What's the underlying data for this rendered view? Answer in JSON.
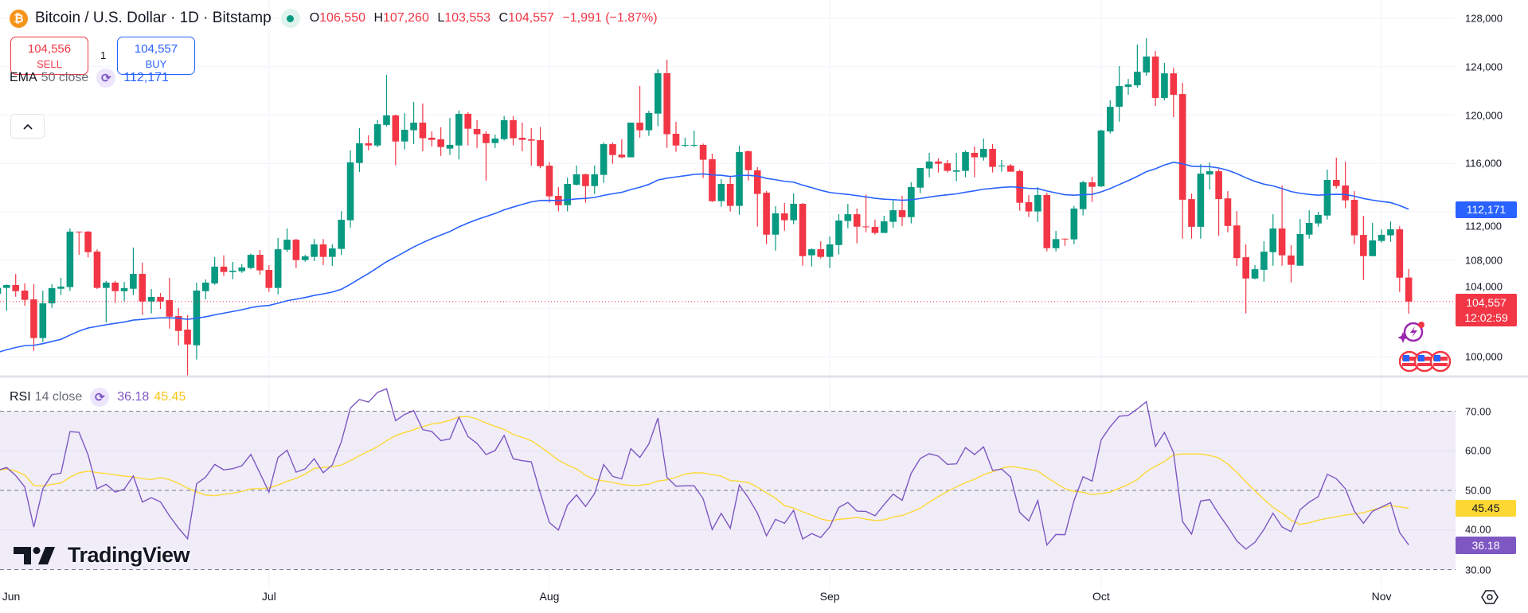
{
  "header": {
    "symbol_icon": "bitcoin-icon",
    "title": "Bitcoin / U.S. Dollar · 1D · Bitstamp",
    "market_status_icon": "market-open-dot",
    "ohlc": {
      "o_label": "O",
      "o": "106,550",
      "h_label": "H",
      "h": "107,260",
      "l_label": "L",
      "l": "103,553",
      "c_label": "C",
      "c": "104,557",
      "change": "−1,991 (−1.87%)"
    }
  },
  "trade": {
    "sell_price": "104,556",
    "sell_label": "SELL",
    "spread": "1",
    "buy_price": "104,557",
    "buy_label": "BUY"
  },
  "indicators": {
    "ema": {
      "name": "EMA",
      "params": "50 close",
      "value": "112,171"
    },
    "rsi": {
      "name": "RSI",
      "params": "14 close",
      "value": "36.18",
      "ma_value": "45.45"
    }
  },
  "price_axis": {
    "ticks": [
      "128,000",
      "124,000",
      "120,000",
      "116,000",
      "112,000",
      "108,000",
      "104,000",
      "100,000"
    ],
    "last_price": "104,557",
    "countdown": "12:02:59",
    "ema_badge": "112,171"
  },
  "rsi_axis": {
    "ticks": [
      "70.00",
      "60.00",
      "50.00",
      "40.00",
      "30.00"
    ],
    "value_badge": "36.18",
    "ma_badge": "45.45"
  },
  "time_axis": {
    "labels": [
      "Jun",
      "Jul",
      "Aug",
      "Sep",
      "Oct",
      "Nov"
    ]
  },
  "watermark": "TradingView",
  "colors": {
    "up": "#089981",
    "down": "#f23645",
    "ema": "#2962ff",
    "rsi": "#7e57c2",
    "rsi_ma": "#fdd835",
    "rsi_band": "#f0edf9",
    "grid": "#f0f3fa"
  },
  "chart_data": {
    "type": "candlestick",
    "series_columns": [
      "date",
      "open",
      "high",
      "low",
      "close"
    ],
    "ylim": [
      98000,
      128500
    ],
    "rsi_ylim": [
      30,
      70
    ],
    "grid": true,
    "candles": [
      [
        "Jun 1",
        105200,
        105900,
        104800,
        105690
      ],
      [
        "Jun 2",
        105690,
        105970,
        103780,
        105930
      ],
      [
        "Jun 3",
        105930,
        106850,
        104960,
        105420
      ],
      [
        "Jun 4",
        105470,
        106060,
        104220,
        104700
      ],
      [
        "Jun 5",
        104740,
        105990,
        100480,
        101540
      ],
      [
        "Jun 6",
        101540,
        105470,
        101190,
        104410
      ],
      [
        "Jun 7",
        104410,
        105990,
        104040,
        105670
      ],
      [
        "Jun 8",
        105620,
        106520,
        105100,
        105800
      ],
      [
        "Jun 9",
        105760,
        110610,
        105430,
        110350
      ],
      [
        "Jun 10",
        110350,
        110350,
        108430,
        110300
      ],
      [
        "Jun 11",
        110350,
        110410,
        108220,
        108650
      ],
      [
        "Jun 12",
        108700,
        108870,
        105600,
        105690
      ],
      [
        "Jun 13",
        105690,
        106280,
        102830,
        106130
      ],
      [
        "Jun 14",
        106130,
        106280,
        104440,
        105420
      ],
      [
        "Jun 15",
        105420,
        106190,
        104590,
        105670
      ],
      [
        "Jun 16",
        105620,
        109030,
        105100,
        106850
      ],
      [
        "Jun 17",
        106850,
        107780,
        103450,
        104570
      ],
      [
        "Jun 18",
        104570,
        105600,
        103580,
        104940
      ],
      [
        "Jun 19",
        104940,
        105270,
        103950,
        104570
      ],
      [
        "Jun 20",
        104680,
        106520,
        102330,
        103310
      ],
      [
        "Jun 21",
        103360,
        104020,
        100940,
        102130
      ],
      [
        "Jun 22",
        102240,
        103430,
        98390,
        101010
      ],
      [
        "Jun 23",
        100940,
        106130,
        99760,
        105470
      ],
      [
        "Jun 24",
        105420,
        106390,
        104740,
        106130
      ],
      [
        "Jun 25",
        106060,
        108260,
        105950,
        107450
      ],
      [
        "Jun 26",
        107450,
        108390,
        106680,
        107010
      ],
      [
        "Jun 27",
        107010,
        107840,
        106410,
        107120
      ],
      [
        "Jun 28",
        107070,
        107670,
        106940,
        107380
      ],
      [
        "Jun 29",
        107340,
        108540,
        107230,
        108430
      ],
      [
        "Jun 30",
        108430,
        108830,
        106790,
        107140
      ],
      [
        "Jul 1",
        107180,
        107580,
        105360,
        105690
      ],
      [
        "Jul 2",
        105690,
        109820,
        105160,
        108890
      ],
      [
        "Jul 3",
        108850,
        110610,
        108650,
        109680
      ],
      [
        "Jul 4",
        109680,
        109760,
        107330,
        107990
      ],
      [
        "Jul 5",
        107990,
        108430,
        107860,
        108300
      ],
      [
        "Jul 6",
        108260,
        109740,
        107910,
        109290
      ],
      [
        "Jul 7",
        109290,
        109740,
        107580,
        108260
      ],
      [
        "Jul 8",
        108260,
        109290,
        107510,
        108960
      ],
      [
        "Jul 9",
        108920,
        112050,
        108410,
        111330
      ],
      [
        "Jul 10",
        111290,
        117070,
        110680,
        116080
      ],
      [
        "Jul 11",
        116030,
        118910,
        115290,
        117660
      ],
      [
        "Jul 12",
        117660,
        118320,
        117080,
        117480
      ],
      [
        "Jul 13",
        117480,
        119570,
        117330,
        119240
      ],
      [
        "Jul 14",
        119180,
        123330,
        119050,
        119970
      ],
      [
        "Jul 15",
        119970,
        120040,
        115840,
        117810
      ],
      [
        "Jul 16",
        117810,
        120160,
        117150,
        118780
      ],
      [
        "Jul 17",
        118740,
        121080,
        117600,
        119370
      ],
      [
        "Jul 18",
        119370,
        120950,
        117000,
        118080
      ],
      [
        "Jul 19",
        118120,
        118650,
        117400,
        117950
      ],
      [
        "Jul 20",
        117990,
        118980,
        116620,
        117350
      ],
      [
        "Jul 21",
        117220,
        119750,
        116690,
        117530
      ],
      [
        "Jul 22",
        117480,
        120370,
        116330,
        120100
      ],
      [
        "Jul 23",
        120100,
        120230,
        117480,
        118870
      ],
      [
        "Jul 24",
        118850,
        119570,
        117260,
        118410
      ],
      [
        "Jul 25",
        118450,
        118650,
        114580,
        117680
      ],
      [
        "Jul 26",
        117680,
        118380,
        117280,
        118050
      ],
      [
        "Jul 27",
        118010,
        119920,
        117900,
        119570
      ],
      [
        "Jul 28",
        119570,
        119900,
        117500,
        118080
      ],
      [
        "Jul 29",
        118120,
        119390,
        117000,
        117950
      ],
      [
        "Jul 30",
        117990,
        118910,
        115800,
        117880
      ],
      [
        "Jul 31",
        117920,
        119000,
        115600,
        115770
      ],
      [
        "Aug 1",
        115810,
        116110,
        112760,
        113270
      ],
      [
        "Aug 2",
        113310,
        114030,
        112030,
        112540
      ],
      [
        "Aug 3",
        112540,
        114820,
        112030,
        114300
      ],
      [
        "Aug 4",
        114230,
        115820,
        114170,
        115090
      ],
      [
        "Aug 5",
        115090,
        115160,
        112740,
        114120
      ],
      [
        "Aug 6",
        114120,
        115820,
        113470,
        115090
      ],
      [
        "Aug 7",
        115050,
        117730,
        114390,
        117590
      ],
      [
        "Aug 8",
        117590,
        117730,
        115970,
        116690
      ],
      [
        "Aug 9",
        116720,
        117990,
        116430,
        116500
      ],
      [
        "Aug 10",
        116500,
        119370,
        116500,
        119370
      ],
      [
        "Aug 11",
        119370,
        122410,
        118140,
        118740
      ],
      [
        "Aug 12",
        118740,
        120360,
        118280,
        120170
      ],
      [
        "Aug 13",
        120120,
        123790,
        119070,
        123460
      ],
      [
        "Aug 14",
        123460,
        124580,
        117290,
        118410
      ],
      [
        "Aug 15",
        118450,
        119440,
        116960,
        117480
      ],
      [
        "Aug 16",
        117480,
        118120,
        117350,
        117530
      ],
      [
        "Aug 17",
        117480,
        118710,
        117350,
        117530
      ],
      [
        "Aug 18",
        117530,
        117640,
        114780,
        116300
      ],
      [
        "Aug 19",
        116340,
        116800,
        112800,
        112870
      ],
      [
        "Aug 20",
        112870,
        114690,
        112410,
        114300
      ],
      [
        "Aug 21",
        114300,
        114960,
        112010,
        112480
      ],
      [
        "Aug 22",
        112480,
        117460,
        111750,
        116940
      ],
      [
        "Aug 23",
        117000,
        117070,
        114580,
        115440
      ],
      [
        "Aug 24",
        115420,
        115690,
        110760,
        113470
      ],
      [
        "Aug 25",
        113570,
        113710,
        109310,
        110100
      ],
      [
        "Aug 26",
        110100,
        112450,
        108780,
        111860
      ],
      [
        "Aug 27",
        111860,
        112720,
        110430,
        111290
      ],
      [
        "Aug 28",
        111290,
        113510,
        110960,
        112650
      ],
      [
        "Aug 29",
        112650,
        112720,
        107530,
        108320
      ],
      [
        "Aug 30",
        108390,
        108960,
        107470,
        108890
      ],
      [
        "Aug 31",
        108890,
        109550,
        108120,
        108260
      ],
      [
        "Sep 1",
        108260,
        109950,
        107330,
        109290
      ],
      [
        "Sep 2",
        109240,
        111790,
        108460,
        111270
      ],
      [
        "Sep 3",
        111230,
        112650,
        110630,
        111790
      ],
      [
        "Sep 4",
        111790,
        112260,
        109380,
        110760
      ],
      [
        "Sep 5",
        110780,
        113420,
        110300,
        110720
      ],
      [
        "Sep 6",
        110740,
        111340,
        110110,
        110240
      ],
      [
        "Sep 7",
        110240,
        111660,
        110240,
        111200
      ],
      [
        "Sep 8",
        111160,
        113050,
        110680,
        112120
      ],
      [
        "Sep 9",
        112120,
        113310,
        110810,
        111550
      ],
      [
        "Sep 10",
        111550,
        114430,
        111030,
        114040
      ],
      [
        "Sep 11",
        113990,
        115620,
        113530,
        115620
      ],
      [
        "Sep 12",
        115580,
        116870,
        114850,
        116150
      ],
      [
        "Sep 13",
        116150,
        116410,
        115250,
        115970
      ],
      [
        "Sep 14",
        116010,
        116280,
        115250,
        115380
      ],
      [
        "Sep 15",
        115310,
        116870,
        114520,
        115420
      ],
      [
        "Sep 16",
        115380,
        117070,
        114850,
        116940
      ],
      [
        "Sep 17",
        116870,
        117400,
        114850,
        116500
      ],
      [
        "Sep 18",
        116500,
        118060,
        116230,
        117200
      ],
      [
        "Sep 19",
        117200,
        117600,
        115250,
        115710
      ],
      [
        "Sep 20",
        115800,
        116280,
        115310,
        115820
      ],
      [
        "Sep 21",
        115820,
        115950,
        115310,
        115310
      ],
      [
        "Sep 22",
        115360,
        115490,
        112080,
        112740
      ],
      [
        "Sep 23",
        112790,
        113380,
        111550,
        112020
      ],
      [
        "Sep 24",
        112020,
        114040,
        111160,
        113380
      ],
      [
        "Sep 25",
        113380,
        113580,
        108720,
        108980
      ],
      [
        "Sep 26",
        108980,
        110410,
        108720,
        109730
      ],
      [
        "Sep 27",
        109770,
        109770,
        109180,
        109710
      ],
      [
        "Sep 28",
        109710,
        112480,
        109310,
        112260
      ],
      [
        "Sep 29",
        112210,
        114560,
        111690,
        114430
      ],
      [
        "Sep 30",
        114430,
        114890,
        112810,
        114060
      ],
      [
        "Oct 1",
        114100,
        118780,
        114040,
        118720
      ],
      [
        "Oct 2",
        118640,
        121210,
        118470,
        120680
      ],
      [
        "Oct 3",
        120680,
        124050,
        119450,
        122400
      ],
      [
        "Oct 4",
        122330,
        122990,
        121670,
        122530
      ],
      [
        "Oct 5",
        122460,
        125830,
        122270,
        123580
      ],
      [
        "Oct 6",
        123520,
        126350,
        123250,
        124840
      ],
      [
        "Oct 7",
        124840,
        125300,
        120750,
        121410
      ],
      [
        "Oct 8",
        121410,
        124310,
        121210,
        123450
      ],
      [
        "Oct 9",
        123450,
        123910,
        119830,
        121670
      ],
      [
        "Oct 10",
        121740,
        122660,
        109770,
        112990
      ],
      [
        "Oct 11",
        113040,
        113500,
        109770,
        110750
      ],
      [
        "Oct 12",
        110750,
        115940,
        109770,
        115150
      ],
      [
        "Oct 13",
        115080,
        116070,
        113830,
        115350
      ],
      [
        "Oct 14",
        115350,
        115540,
        110010,
        113040
      ],
      [
        "Oct 15",
        113100,
        113700,
        110290,
        110820
      ],
      [
        "Oct 16",
        110860,
        112050,
        107500,
        108160
      ],
      [
        "Oct 17",
        108230,
        109290,
        103580,
        106470
      ],
      [
        "Oct 18",
        106470,
        107570,
        106400,
        107240
      ],
      [
        "Oct 19",
        107190,
        109550,
        106210,
        108690
      ],
      [
        "Oct 20",
        108650,
        111790,
        107530,
        110610
      ],
      [
        "Oct 21",
        110610,
        114170,
        107530,
        108390
      ],
      [
        "Oct 22",
        108370,
        109220,
        106150,
        107600
      ],
      [
        "Oct 23",
        107530,
        111400,
        107530,
        110150
      ],
      [
        "Oct 24",
        110100,
        112120,
        109770,
        111070
      ],
      [
        "Oct 25",
        111030,
        111990,
        110760,
        111730
      ],
      [
        "Oct 26",
        111680,
        115480,
        111350,
        114630
      ],
      [
        "Oct 27",
        114630,
        116470,
        113920,
        114120
      ],
      [
        "Oct 28",
        114170,
        116140,
        112280,
        112940
      ],
      [
        "Oct 29",
        112980,
        113710,
        109310,
        110040
      ],
      [
        "Oct 30",
        110080,
        111660,
        106350,
        108320
      ],
      [
        "Oct 31",
        108320,
        111070,
        108320,
        109620
      ],
      [
        "Nov 1",
        109580,
        110540,
        109440,
        110080
      ],
      [
        "Nov 2",
        110040,
        111200,
        109510,
        110540
      ],
      [
        "Nov 3",
        110540,
        110800,
        105360,
        106540
      ],
      [
        "Nov 4",
        106550,
        107260,
        103553,
        104557
      ]
    ]
  }
}
